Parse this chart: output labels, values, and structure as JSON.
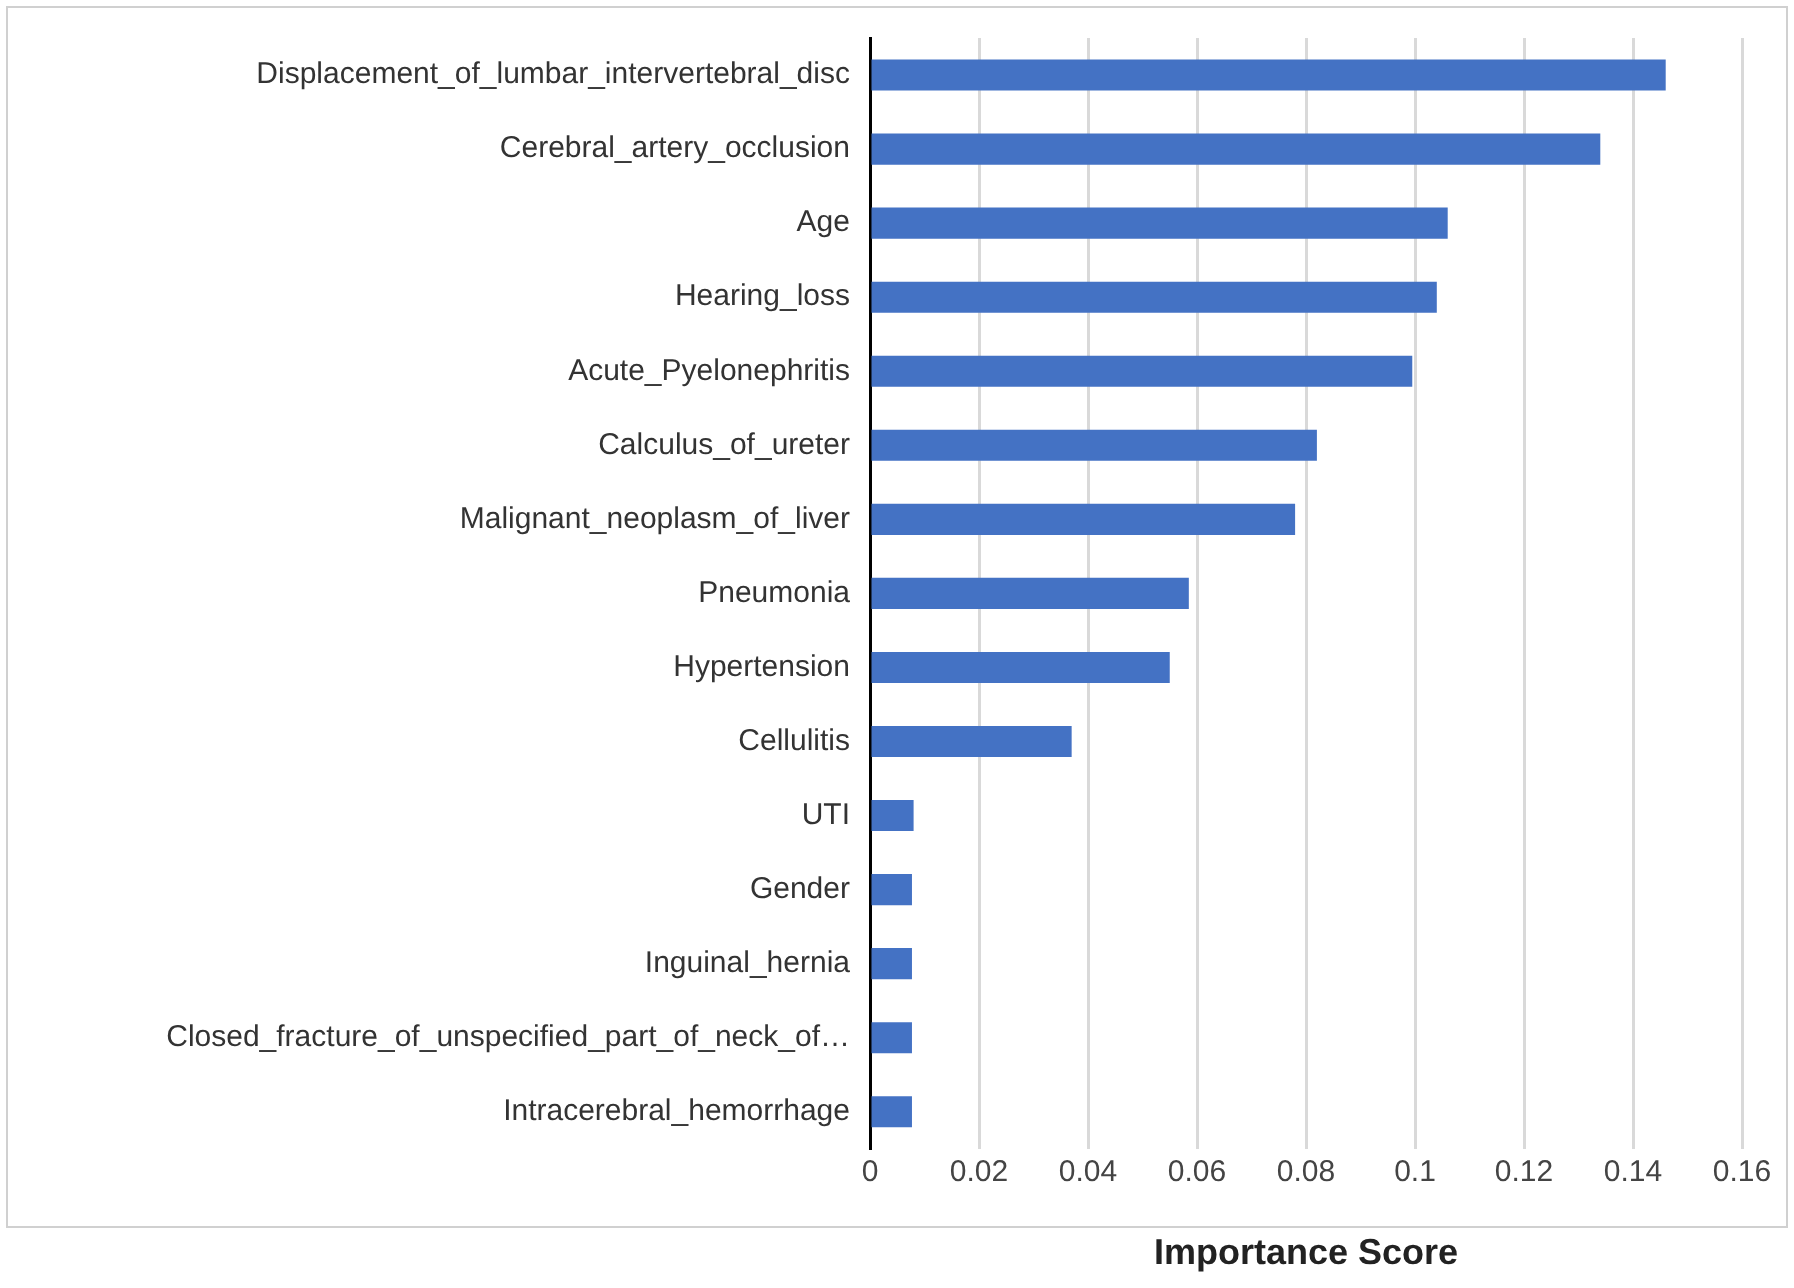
{
  "chart_data": {
    "type": "bar",
    "orientation": "horizontal",
    "xlabel": "Importance Score",
    "categories": [
      "Displacement_of_lumbar_intervertebral_disc",
      "Cerebral_artery_occlusion",
      "Age",
      "Hearing_loss",
      "Acute_Pyelonephritis",
      "Calculus_of_ureter",
      "Malignant_neoplasm_of_liver",
      "Pneumonia",
      "Hypertension",
      "Cellulitis",
      "UTI",
      "Gender",
      "Inguinal_hernia",
      "Closed_fracture_of_unspecified_part_of_neck_of…",
      "Intracerebral_hemorrhage"
    ],
    "values": [
      0.146,
      0.134,
      0.106,
      0.104,
      0.0995,
      0.082,
      0.078,
      0.0585,
      0.055,
      0.037,
      0.008,
      0.0077,
      0.0077,
      0.0077,
      0.0077
    ],
    "color": "#4472c4",
    "xlim": [
      0,
      0.16
    ],
    "xticks": [
      0,
      0.02,
      0.04,
      0.06,
      0.08,
      0.1,
      0.12,
      0.14,
      0.16
    ],
    "grid": "x",
    "legend": false
  }
}
